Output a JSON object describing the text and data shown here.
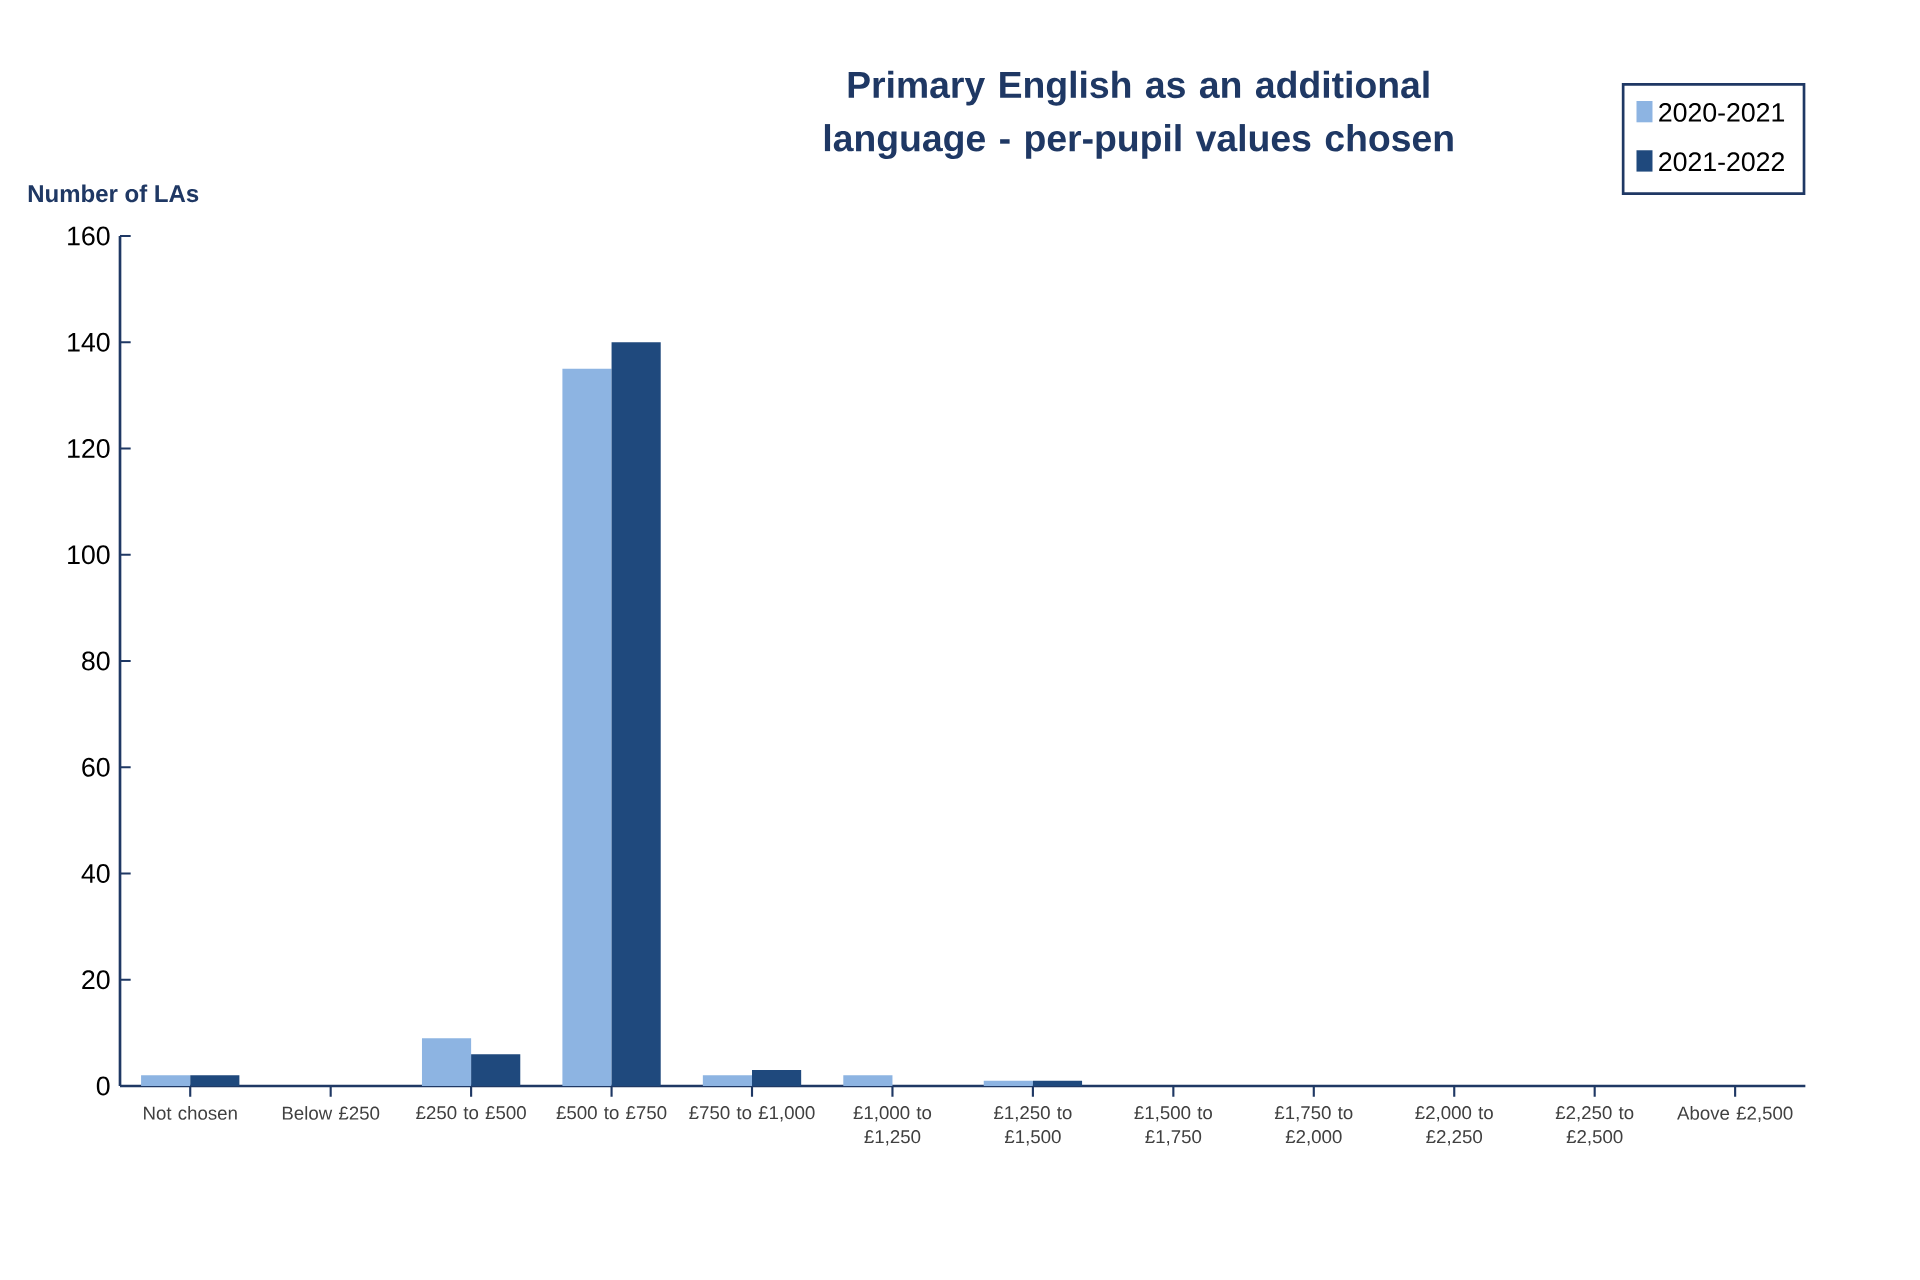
{
  "chart_data": {
    "type": "bar",
    "title": "Primary English as an additional language - per-pupil values chosen",
    "ylabel": "Number of LAs",
    "categories": [
      "Not chosen",
      "Below £250",
      "£250 to £500",
      "£500 to £750",
      "£750 to £1,000",
      "£1,000 to £1,250",
      "£1,250 to £1,500",
      "£1,500 to £1,750",
      "£1,750 to £2,000",
      "£2,000 to £2,250",
      "£2,250 to £2,500",
      "Above £2,500"
    ],
    "series": [
      {
        "name": "2020-2021",
        "color": "#8db4e2",
        "values": [
          2,
          0,
          9,
          135,
          2,
          2,
          1,
          0,
          0,
          0,
          0,
          0
        ]
      },
      {
        "name": "2021-2022",
        "color": "#1f497d",
        "values": [
          2,
          0,
          6,
          140,
          3,
          0,
          1,
          0,
          0,
          0,
          0,
          0
        ]
      }
    ],
    "ylim": [
      0,
      160
    ],
    "yticks": [
      0,
      20,
      40,
      60,
      80,
      100,
      120,
      140,
      160
    ],
    "grid": false,
    "legend": "top right"
  }
}
